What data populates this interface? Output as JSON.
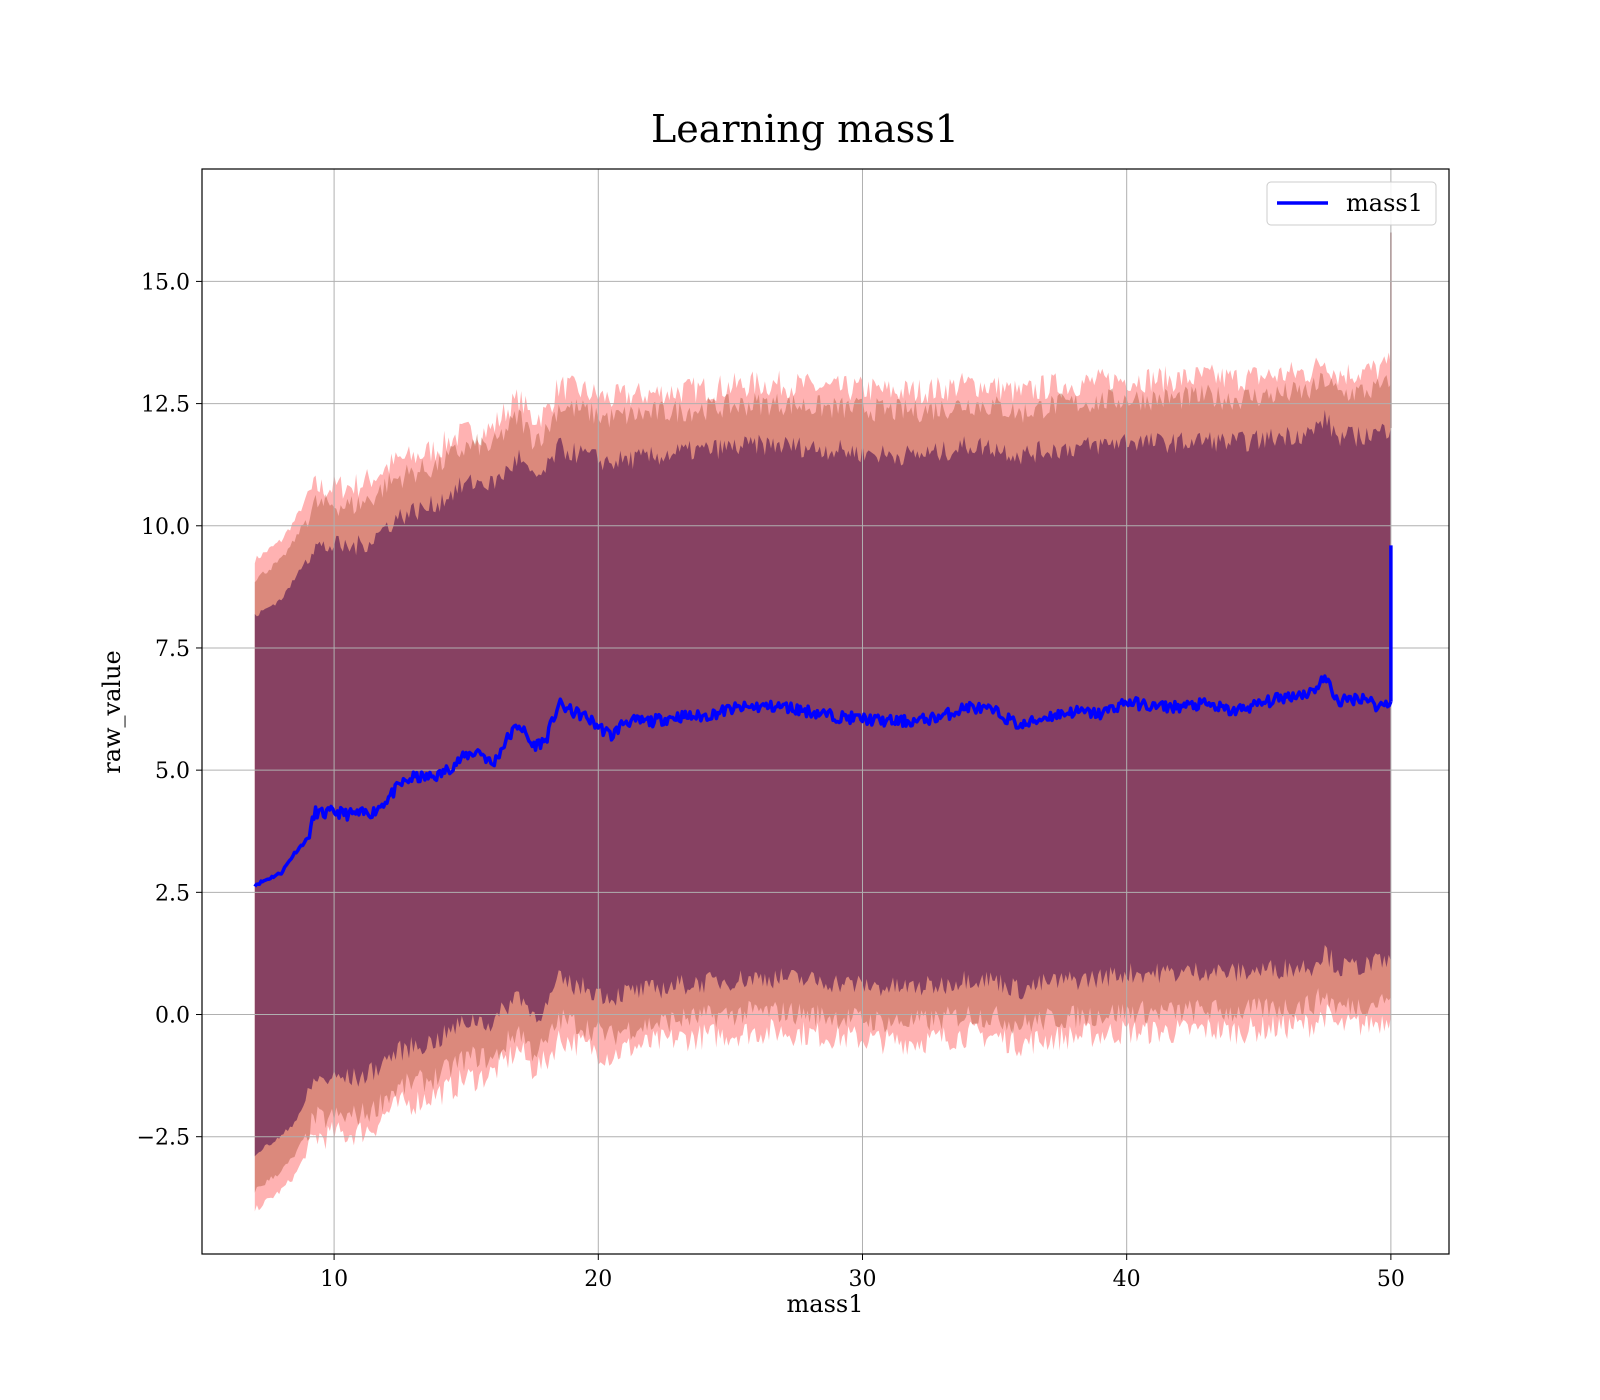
{
  "chart_data": {
    "type": "line",
    "title": "Learning mass1",
    "xlabel": "mass1",
    "ylabel": "raw_value",
    "xlim": [
      5,
      52.2
    ],
    "ylim": [
      -4.9,
      17.3
    ],
    "x_ticks": [
      10,
      20,
      30,
      40,
      50
    ],
    "x_tick_labels": [
      "10",
      "20",
      "30",
      "40",
      "50"
    ],
    "y_ticks": [
      -2.5,
      0.0,
      2.5,
      5.0,
      7.5,
      10.0,
      12.5,
      15.0
    ],
    "y_tick_labels": [
      "−2.5",
      "0.0",
      "2.5",
      "5.0",
      "7.5",
      "10.0",
      "12.5",
      "15.0"
    ],
    "grid": true,
    "legend": {
      "position": "top-right",
      "entries": [
        "mass1"
      ]
    },
    "colors": {
      "line": "#0000ff",
      "band": "#ff0000",
      "inner_band": "#6b2a5a",
      "grid": "#b0b0b0"
    },
    "series": [
      {
        "name": "mass1",
        "x": [
          7.0,
          8.0,
          8.5,
          9.0,
          9.3,
          9.6,
          10.0,
          10.5,
          11.0,
          11.5,
          12.0,
          12.5,
          13.0,
          13.5,
          14.0,
          14.5,
          15.0,
          15.5,
          16.0,
          16.5,
          17.0,
          17.5,
          18.0,
          18.5,
          19.0,
          19.5,
          20.0,
          20.5,
          21.0,
          22.0,
          23.0,
          24.0,
          25.0,
          26.0,
          27.0,
          28.0,
          29.0,
          30.0,
          31.0,
          32.0,
          33.0,
          34.0,
          35.0,
          36.0,
          37.0,
          38.0,
          39.0,
          40.0,
          41.0,
          42.0,
          43.0,
          44.0,
          45.0,
          46.0,
          47.0,
          47.5,
          48.0,
          49.0,
          49.5,
          50.0
        ],
        "y": [
          2.65,
          2.9,
          3.3,
          3.6,
          4.15,
          4.1,
          4.15,
          4.1,
          4.1,
          4.15,
          4.4,
          4.7,
          4.85,
          4.85,
          4.9,
          5.1,
          5.3,
          5.4,
          5.1,
          5.6,
          5.95,
          5.5,
          5.6,
          6.35,
          6.2,
          6.1,
          5.9,
          5.7,
          6.0,
          6.0,
          6.1,
          6.1,
          6.25,
          6.3,
          6.3,
          6.2,
          6.1,
          6.05,
          6.0,
          6.0,
          6.1,
          6.3,
          6.2,
          5.9,
          6.1,
          6.2,
          6.15,
          6.4,
          6.3,
          6.3,
          6.35,
          6.2,
          6.35,
          6.5,
          6.6,
          6.9,
          6.4,
          6.5,
          6.3,
          6.4
        ],
        "line_upper": [
          9.3,
          9.7,
          10.1,
          10.6,
          10.8,
          10.75,
          10.8,
          10.8,
          10.85,
          11.0,
          11.2,
          11.35,
          11.4,
          11.5,
          11.6,
          11.8,
          11.9,
          11.9,
          12.0,
          12.35,
          12.6,
          12.2,
          12.3,
          12.85,
          12.8,
          12.75,
          12.65,
          12.6,
          12.65,
          12.7,
          12.75,
          12.8,
          12.85,
          12.9,
          12.9,
          12.85,
          12.8,
          12.8,
          12.75,
          12.75,
          12.8,
          12.9,
          12.85,
          12.7,
          12.85,
          12.9,
          12.95,
          13.0,
          13.0,
          13.0,
          13.05,
          13.0,
          13.05,
          13.1,
          13.15,
          13.4,
          13.1,
          13.15,
          13.2,
          13.3
        ],
        "line_lower": [
          -4.0,
          -3.6,
          -3.3,
          -2.8,
          -2.5,
          -2.5,
          -2.45,
          -2.45,
          -2.4,
          -2.3,
          -2.0,
          -1.85,
          -1.8,
          -1.7,
          -1.6,
          -1.5,
          -1.3,
          -1.3,
          -1.2,
          -0.95,
          -0.7,
          -1.1,
          -1.0,
          -0.5,
          -0.55,
          -0.65,
          -0.75,
          -0.85,
          -0.7,
          -0.6,
          -0.5,
          -0.45,
          -0.4,
          -0.35,
          -0.35,
          -0.4,
          -0.45,
          -0.5,
          -0.55,
          -0.55,
          -0.5,
          -0.4,
          -0.45,
          -0.6,
          -0.5,
          -0.45,
          -0.4,
          -0.35,
          -0.35,
          -0.35,
          -0.3,
          -0.35,
          -0.3,
          -0.25,
          -0.2,
          0.0,
          -0.25,
          -0.2,
          -0.15,
          -0.05
        ],
        "inner_upper": [
          8.15,
          8.5,
          8.9,
          9.4,
          9.6,
          9.55,
          9.6,
          9.55,
          9.6,
          9.75,
          10.0,
          10.2,
          10.3,
          10.35,
          10.5,
          10.7,
          10.85,
          10.9,
          10.85,
          11.1,
          11.4,
          10.95,
          11.1,
          11.6,
          11.5,
          11.45,
          11.35,
          11.3,
          11.35,
          11.4,
          11.5,
          11.55,
          11.6,
          11.65,
          11.65,
          11.6,
          11.55,
          11.5,
          11.45,
          11.45,
          11.5,
          11.65,
          11.6,
          11.45,
          11.55,
          11.6,
          11.65,
          11.75,
          11.7,
          11.7,
          11.75,
          11.7,
          11.75,
          11.85,
          11.9,
          12.2,
          11.8,
          11.85,
          11.9,
          12.0
        ],
        "inner_lower": [
          -2.85,
          -2.5,
          -2.2,
          -1.7,
          -1.3,
          -1.35,
          -1.3,
          -1.3,
          -1.3,
          -1.15,
          -0.9,
          -0.75,
          -0.65,
          -0.6,
          -0.5,
          -0.3,
          -0.15,
          -0.1,
          -0.2,
          0.15,
          0.45,
          0.0,
          0.1,
          0.7,
          0.6,
          0.55,
          0.45,
          0.35,
          0.45,
          0.5,
          0.6,
          0.65,
          0.7,
          0.75,
          0.75,
          0.7,
          0.65,
          0.6,
          0.55,
          0.55,
          0.6,
          0.75,
          0.7,
          0.5,
          0.65,
          0.7,
          0.75,
          0.85,
          0.85,
          0.85,
          0.9,
          0.85,
          0.9,
          0.95,
          1.0,
          1.3,
          0.95,
          1.0,
          1.05,
          1.1
        ],
        "band_upper": [
          8.9,
          9.3,
          9.7,
          10.2,
          10.45,
          10.4,
          10.45,
          10.4,
          10.45,
          10.6,
          10.85,
          11.0,
          11.1,
          11.15,
          11.25,
          11.45,
          11.6,
          11.65,
          11.6,
          11.95,
          12.25,
          11.8,
          11.9,
          12.45,
          12.4,
          12.35,
          12.25,
          12.2,
          12.25,
          12.3,
          12.35,
          12.4,
          12.45,
          12.5,
          12.5,
          12.45,
          12.4,
          12.4,
          12.35,
          12.35,
          12.4,
          12.5,
          12.45,
          12.3,
          12.45,
          12.5,
          12.55,
          12.6,
          12.6,
          12.6,
          12.65,
          12.6,
          12.65,
          12.7,
          12.75,
          13.0,
          12.7,
          12.75,
          12.8,
          12.9
        ],
        "band_lower": [
          -3.6,
          -3.2,
          -2.9,
          -2.4,
          -2.1,
          -2.15,
          -2.1,
          -2.1,
          -2.05,
          -1.95,
          -1.65,
          -1.5,
          -1.4,
          -1.35,
          -1.25,
          -1.05,
          -0.9,
          -0.85,
          -0.95,
          -0.6,
          -0.3,
          -0.75,
          -0.65,
          -0.1,
          -0.15,
          -0.25,
          -0.35,
          -0.45,
          -0.3,
          -0.2,
          -0.1,
          -0.05,
          0.0,
          0.05,
          0.05,
          0.0,
          -0.05,
          -0.1,
          -0.15,
          -0.15,
          -0.1,
          0.0,
          -0.05,
          -0.2,
          -0.1,
          -0.05,
          0.0,
          0.05,
          0.05,
          0.05,
          0.1,
          0.05,
          0.1,
          0.15,
          0.2,
          0.4,
          0.15,
          0.2,
          0.25,
          0.35
        ]
      }
    ],
    "endpoint_spike": {
      "x": 50.0,
      "y_top": 9.6,
      "band_top": 16.0
    }
  }
}
